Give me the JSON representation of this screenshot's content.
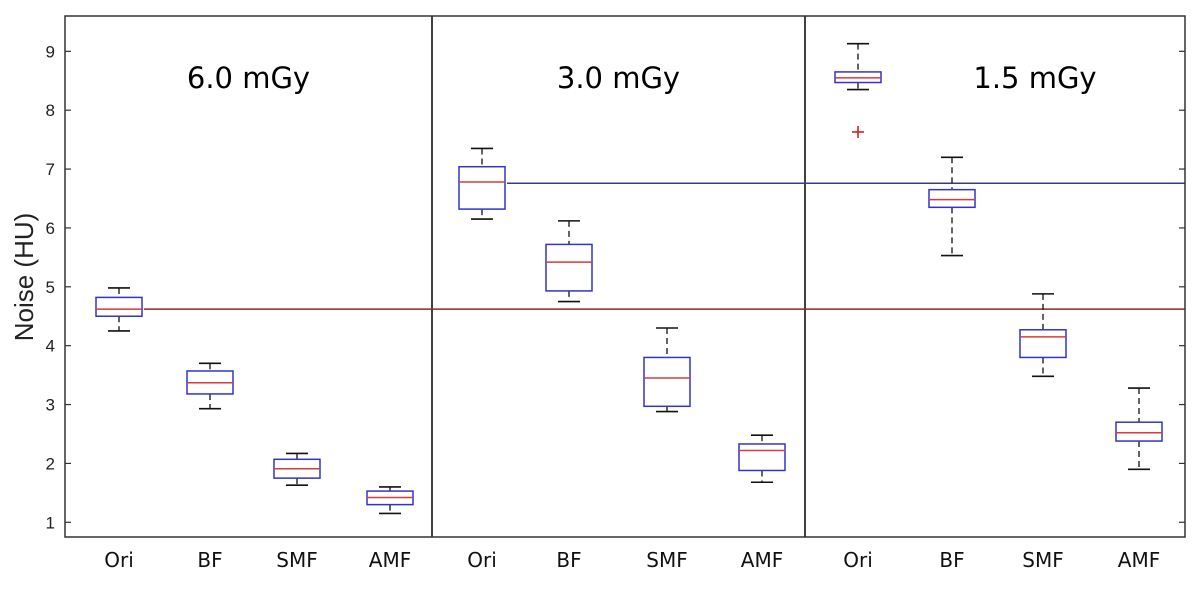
{
  "chart_data": {
    "type": "box",
    "ylabel": "Noise (HU)",
    "xlabel": "",
    "ylim": [
      0.75,
      9.6
    ],
    "yticks": [
      1,
      2,
      3,
      4,
      5,
      6,
      7,
      8,
      9
    ],
    "grid": false,
    "colors": {
      "box": "#3333cc",
      "median": "#d93a3a",
      "whisker": "#111111",
      "outlier": "#cc2222",
      "ref_low": "#8b2a2a",
      "ref_high": "#3a3a8a"
    },
    "reference_lines": [
      {
        "value": 4.62,
        "color": "#8b2a2a",
        "from_panel": 0
      },
      {
        "value": 6.76,
        "color": "#3a3a8a",
        "from_panel": 1
      }
    ],
    "panels": [
      {
        "title": "6.0 mGy",
        "boxes": [
          {
            "category": "Ori",
            "min": 4.25,
            "q1": 4.5,
            "median": 4.62,
            "q3": 4.82,
            "max": 4.98,
            "outliers": []
          },
          {
            "category": "BF",
            "min": 2.93,
            "q1": 3.18,
            "median": 3.37,
            "q3": 3.57,
            "max": 3.7,
            "outliers": []
          },
          {
            "category": "SMF",
            "min": 1.63,
            "q1": 1.75,
            "median": 1.91,
            "q3": 2.07,
            "max": 2.17,
            "outliers": []
          },
          {
            "category": "AMF",
            "min": 1.15,
            "q1": 1.3,
            "median": 1.42,
            "q3": 1.53,
            "max": 1.6,
            "outliers": []
          }
        ]
      },
      {
        "title": "3.0 mGy",
        "boxes": [
          {
            "category": "Ori",
            "min": 6.15,
            "q1": 6.32,
            "median": 6.78,
            "q3": 7.04,
            "max": 7.35,
            "outliers": []
          },
          {
            "category": "BF",
            "min": 4.75,
            "q1": 4.93,
            "median": 5.42,
            "q3": 5.72,
            "max": 6.12,
            "outliers": []
          },
          {
            "category": "SMF",
            "min": 2.88,
            "q1": 2.97,
            "median": 3.45,
            "q3": 3.8,
            "max": 4.3,
            "outliers": []
          },
          {
            "category": "AMF",
            "min": 1.68,
            "q1": 1.88,
            "median": 2.22,
            "q3": 2.33,
            "max": 2.48,
            "outliers": []
          }
        ]
      },
      {
        "title": "1.5 mGy",
        "boxes": [
          {
            "category": "Ori",
            "min": 8.35,
            "q1": 8.47,
            "median": 8.55,
            "q3": 8.65,
            "max": 9.13,
            "outliers": [
              7.63
            ]
          },
          {
            "category": "BF",
            "min": 5.53,
            "q1": 6.35,
            "median": 6.48,
            "q3": 6.65,
            "max": 7.2,
            "outliers": []
          },
          {
            "category": "SMF",
            "min": 3.48,
            "q1": 3.8,
            "median": 4.15,
            "q3": 4.27,
            "max": 4.88,
            "outliers": []
          },
          {
            "category": "AMF",
            "min": 1.9,
            "q1": 2.38,
            "median": 2.52,
            "q3": 2.7,
            "max": 3.28,
            "outliers": []
          }
        ]
      }
    ]
  }
}
